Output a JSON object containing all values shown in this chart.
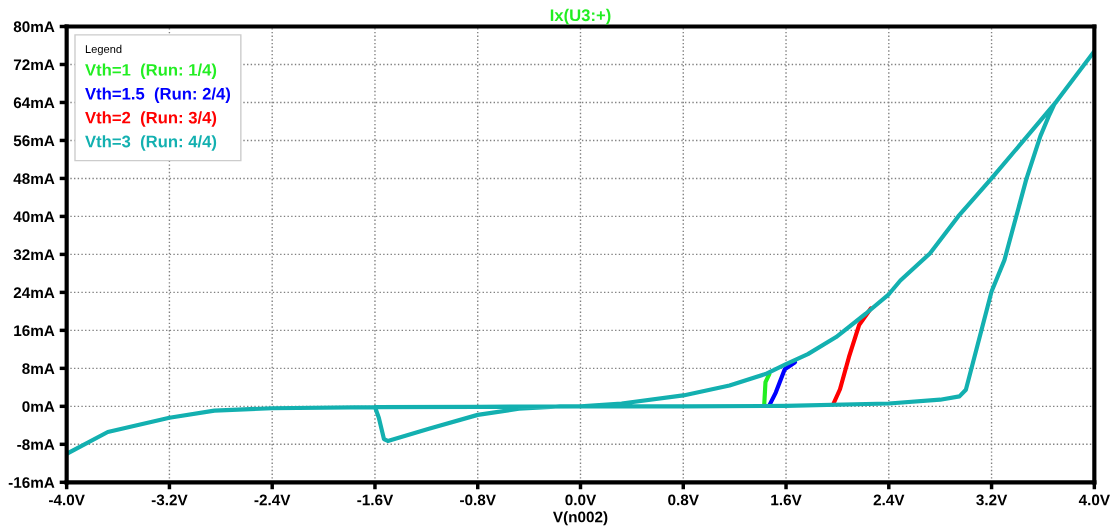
{
  "chart_data": {
    "type": "line",
    "title": "Ix(U3:+)",
    "xlabel": "V(n002)",
    "legend_title": "Legend",
    "xlim": [
      -4.0,
      4.0
    ],
    "ylim": [
      -16,
      80
    ],
    "xticks": [
      {
        "value": -4.0,
        "label": "-4.0V"
      },
      {
        "value": -3.2,
        "label": "-3.2V"
      },
      {
        "value": -2.4,
        "label": "-2.4V"
      },
      {
        "value": -1.6,
        "label": "-1.6V"
      },
      {
        "value": -0.8,
        "label": "-0.8V"
      },
      {
        "value": 0.0,
        "label": "0.0V"
      },
      {
        "value": 0.8,
        "label": "0.8V"
      },
      {
        "value": 1.6,
        "label": "1.6V"
      },
      {
        "value": 2.4,
        "label": "2.4V"
      },
      {
        "value": 3.2,
        "label": "3.2V"
      },
      {
        "value": 4.0,
        "label": "4.0V"
      }
    ],
    "yticks": [
      {
        "value": -16,
        "label": "-16mA"
      },
      {
        "value": -8,
        "label": "-8mA"
      },
      {
        "value": 0,
        "label": "0mA"
      },
      {
        "value": 8,
        "label": "8mA"
      },
      {
        "value": 16,
        "label": "16mA"
      },
      {
        "value": 24,
        "label": "24mA"
      },
      {
        "value": 32,
        "label": "32mA"
      },
      {
        "value": 40,
        "label": "40mA"
      },
      {
        "value": 48,
        "label": "48mA"
      },
      {
        "value": 56,
        "label": "56mA"
      },
      {
        "value": 64,
        "label": "64mA"
      },
      {
        "value": 72,
        "label": "72mA"
      },
      {
        "value": 80,
        "label": "80mA"
      }
    ],
    "grid": true,
    "legend": "top left",
    "line_style": "solid",
    "marker": "none",
    "series": [
      {
        "name": "Vth=1  (Run: 1/4)",
        "color": "#22ee22",
        "x": [
          1.43,
          1.44,
          1.47
        ],
        "values": [
          0.2,
          5.1,
          6.8
        ]
      },
      {
        "name": "Vth=1.5  (Run: 2/4)",
        "color": "#0000ff",
        "x": [
          1.47,
          1.52,
          1.59,
          1.67
        ],
        "values": [
          0.2,
          2.9,
          7.8,
          9.3
        ]
      },
      {
        "name": "Vth=2  (Run: 3/4)",
        "color": "#ff0000",
        "x": [
          1.97,
          2.02,
          2.09,
          2.17,
          2.26
        ],
        "values": [
          0.6,
          3.6,
          10.4,
          17.2,
          20.6
        ]
      },
      {
        "name": "Vth=3  (Run: 4/4)",
        "color": "#13b0b0",
        "x": [
          -4.0,
          -3.68,
          -3.2,
          -2.85,
          -2.4,
          -1.6,
          -0.8,
          0.0,
          0.8,
          1.6,
          2.4,
          2.8,
          2.95,
          3.0,
          3.2,
          3.3,
          3.47,
          3.58,
          3.65,
          3.69,
          4.0,
          3.69,
          3.2,
          2.94,
          2.72,
          2.49,
          2.4,
          2.22,
          1.99,
          1.77,
          1.6,
          1.44,
          1.16,
          0.8,
          0.32,
          0.0,
          -0.16,
          -0.48,
          -0.8,
          -1.18,
          -1.5,
          -1.53,
          -1.57,
          -1.6
        ],
        "values": [
          -10,
          -5.4,
          -2.4,
          -0.9,
          -0.4,
          -0.15,
          -0.1,
          0,
          0,
          0.1,
          0.6,
          1.4,
          2.1,
          3.5,
          24.2,
          30.8,
          47.8,
          56.9,
          61.4,
          63.7,
          74.8,
          63.7,
          48,
          40,
          32.2,
          26.5,
          23.6,
          19.5,
          14.6,
          11,
          8.9,
          6.8,
          4.4,
          2.3,
          0.6,
          0,
          0,
          -0.5,
          -1.8,
          -4.7,
          -7.3,
          -6.9,
          -2.4,
          -0.15
        ]
      }
    ]
  }
}
